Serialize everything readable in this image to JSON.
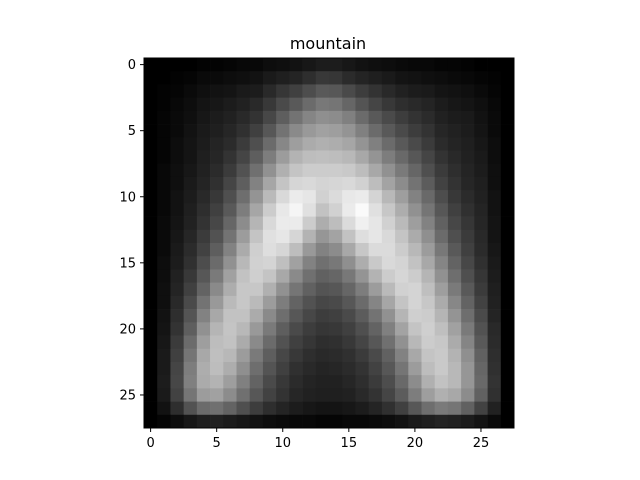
{
  "chart_data": {
    "type": "heatmap",
    "title": "mountain",
    "xlabel": "",
    "ylabel": "",
    "colormap": "gray",
    "value_range": [
      0,
      1
    ],
    "rows": 28,
    "cols": 28,
    "xlim": [
      -0.5,
      27.5
    ],
    "ylim": [
      27.5,
      -0.5
    ],
    "x_ticks": [
      0,
      5,
      10,
      15,
      20,
      25
    ],
    "y_ticks": [
      0,
      5,
      10,
      15,
      20,
      25
    ],
    "x_tick_labels": [
      "0",
      "5",
      "10",
      "15",
      "20",
      "25"
    ],
    "y_tick_labels": [
      "0",
      "5",
      "10",
      "15",
      "20",
      "25"
    ],
    "grid": false,
    "colors": {
      "low": "#000000",
      "high": "#ffffff",
      "frame": "#000000",
      "background": "#ffffff"
    },
    "values": [
      [
        0.0,
        0.0,
        0.0,
        0.0,
        0.01,
        0.01,
        0.02,
        0.03,
        0.03,
        0.05,
        0.06,
        0.07,
        0.09,
        0.11,
        0.11,
        0.09,
        0.07,
        0.06,
        0.05,
        0.04,
        0.03,
        0.03,
        0.02,
        0.02,
        0.01,
        0.0,
        0.0,
        0.0
      ],
      [
        0.0,
        0.0,
        0.01,
        0.02,
        0.04,
        0.04,
        0.05,
        0.06,
        0.07,
        0.1,
        0.12,
        0.14,
        0.18,
        0.22,
        0.21,
        0.17,
        0.14,
        0.12,
        0.1,
        0.08,
        0.07,
        0.06,
        0.05,
        0.04,
        0.03,
        0.02,
        0.01,
        0.0
      ],
      [
        0.0,
        0.01,
        0.02,
        0.04,
        0.06,
        0.07,
        0.08,
        0.1,
        0.11,
        0.16,
        0.21,
        0.25,
        0.3,
        0.35,
        0.34,
        0.29,
        0.24,
        0.2,
        0.16,
        0.13,
        0.11,
        0.1,
        0.08,
        0.07,
        0.06,
        0.04,
        0.02,
        0.0
      ],
      [
        0.0,
        0.01,
        0.03,
        0.05,
        0.08,
        0.09,
        0.11,
        0.13,
        0.16,
        0.22,
        0.29,
        0.35,
        0.42,
        0.47,
        0.46,
        0.4,
        0.33,
        0.27,
        0.22,
        0.18,
        0.16,
        0.14,
        0.11,
        0.09,
        0.08,
        0.06,
        0.03,
        0.0
      ],
      [
        0.0,
        0.02,
        0.04,
        0.06,
        0.09,
        0.11,
        0.13,
        0.16,
        0.2,
        0.28,
        0.37,
        0.45,
        0.52,
        0.56,
        0.55,
        0.5,
        0.42,
        0.35,
        0.29,
        0.24,
        0.2,
        0.17,
        0.13,
        0.11,
        0.1,
        0.07,
        0.04,
        0.0
      ],
      [
        0.0,
        0.02,
        0.04,
        0.07,
        0.1,
        0.12,
        0.15,
        0.19,
        0.25,
        0.34,
        0.45,
        0.54,
        0.6,
        0.63,
        0.62,
        0.58,
        0.5,
        0.42,
        0.35,
        0.29,
        0.24,
        0.2,
        0.15,
        0.13,
        0.11,
        0.08,
        0.04,
        0.0
      ],
      [
        0.0,
        0.02,
        0.05,
        0.08,
        0.11,
        0.14,
        0.17,
        0.23,
        0.31,
        0.42,
        0.53,
        0.62,
        0.67,
        0.69,
        0.68,
        0.65,
        0.58,
        0.5,
        0.42,
        0.35,
        0.29,
        0.23,
        0.17,
        0.14,
        0.12,
        0.09,
        0.05,
        0.0
      ],
      [
        0.0,
        0.02,
        0.05,
        0.08,
        0.12,
        0.15,
        0.2,
        0.27,
        0.37,
        0.49,
        0.61,
        0.7,
        0.74,
        0.75,
        0.74,
        0.72,
        0.66,
        0.58,
        0.49,
        0.41,
        0.34,
        0.27,
        0.2,
        0.16,
        0.13,
        0.1,
        0.05,
        0.0
      ],
      [
        0.0,
        0.03,
        0.06,
        0.09,
        0.13,
        0.17,
        0.23,
        0.32,
        0.44,
        0.57,
        0.69,
        0.77,
        0.8,
        0.8,
        0.8,
        0.79,
        0.74,
        0.66,
        0.57,
        0.48,
        0.4,
        0.31,
        0.23,
        0.18,
        0.14,
        0.11,
        0.06,
        0.0
      ],
      [
        0.0,
        0.03,
        0.06,
        0.1,
        0.14,
        0.19,
        0.27,
        0.37,
        0.51,
        0.65,
        0.77,
        0.84,
        0.85,
        0.83,
        0.84,
        0.85,
        0.82,
        0.74,
        0.64,
        0.55,
        0.45,
        0.36,
        0.26,
        0.2,
        0.15,
        0.12,
        0.06,
        0.0
      ],
      [
        0.0,
        0.03,
        0.07,
        0.11,
        0.16,
        0.22,
        0.31,
        0.43,
        0.58,
        0.73,
        0.85,
        0.92,
        0.9,
        0.82,
        0.86,
        0.91,
        0.92,
        0.83,
        0.72,
        0.62,
        0.51,
        0.41,
        0.3,
        0.22,
        0.17,
        0.13,
        0.07,
        0.0
      ],
      [
        0.0,
        0.03,
        0.07,
        0.12,
        0.18,
        0.25,
        0.35,
        0.49,
        0.65,
        0.8,
        0.91,
        0.96,
        0.88,
        0.76,
        0.82,
        0.92,
        0.98,
        0.88,
        0.78,
        0.68,
        0.57,
        0.46,
        0.34,
        0.25,
        0.19,
        0.14,
        0.07,
        0.0
      ],
      [
        0.0,
        0.04,
        0.08,
        0.13,
        0.2,
        0.28,
        0.4,
        0.55,
        0.71,
        0.85,
        0.92,
        0.92,
        0.8,
        0.68,
        0.74,
        0.86,
        0.94,
        0.9,
        0.82,
        0.73,
        0.62,
        0.51,
        0.38,
        0.28,
        0.21,
        0.15,
        0.08,
        0.0
      ],
      [
        0.0,
        0.04,
        0.09,
        0.15,
        0.23,
        0.32,
        0.45,
        0.61,
        0.77,
        0.88,
        0.9,
        0.84,
        0.7,
        0.59,
        0.64,
        0.76,
        0.87,
        0.9,
        0.85,
        0.77,
        0.67,
        0.56,
        0.42,
        0.31,
        0.23,
        0.16,
        0.08,
        0.0
      ],
      [
        0.0,
        0.04,
        0.1,
        0.17,
        0.26,
        0.37,
        0.51,
        0.67,
        0.81,
        0.87,
        0.84,
        0.74,
        0.6,
        0.51,
        0.55,
        0.66,
        0.78,
        0.86,
        0.86,
        0.8,
        0.72,
        0.61,
        0.47,
        0.35,
        0.25,
        0.17,
        0.09,
        0.0
      ],
      [
        0.0,
        0.05,
        0.11,
        0.19,
        0.3,
        0.42,
        0.57,
        0.72,
        0.82,
        0.83,
        0.75,
        0.63,
        0.51,
        0.44,
        0.47,
        0.56,
        0.68,
        0.79,
        0.85,
        0.83,
        0.76,
        0.66,
        0.52,
        0.39,
        0.28,
        0.19,
        0.1,
        0.0
      ],
      [
        0.0,
        0.05,
        0.13,
        0.22,
        0.34,
        0.48,
        0.63,
        0.76,
        0.81,
        0.77,
        0.66,
        0.54,
        0.44,
        0.38,
        0.4,
        0.47,
        0.58,
        0.7,
        0.8,
        0.84,
        0.8,
        0.71,
        0.57,
        0.43,
        0.31,
        0.21,
        0.11,
        0.0
      ],
      [
        0.0,
        0.06,
        0.14,
        0.25,
        0.39,
        0.54,
        0.68,
        0.78,
        0.78,
        0.69,
        0.57,
        0.46,
        0.38,
        0.33,
        0.34,
        0.4,
        0.49,
        0.61,
        0.73,
        0.82,
        0.83,
        0.75,
        0.62,
        0.48,
        0.35,
        0.23,
        0.12,
        0.0
      ],
      [
        0.0,
        0.06,
        0.16,
        0.29,
        0.45,
        0.6,
        0.73,
        0.78,
        0.73,
        0.61,
        0.49,
        0.39,
        0.32,
        0.28,
        0.29,
        0.34,
        0.42,
        0.52,
        0.65,
        0.77,
        0.83,
        0.78,
        0.67,
        0.53,
        0.39,
        0.26,
        0.13,
        0.0
      ],
      [
        0.0,
        0.07,
        0.18,
        0.33,
        0.51,
        0.66,
        0.76,
        0.76,
        0.67,
        0.54,
        0.43,
        0.34,
        0.28,
        0.24,
        0.25,
        0.29,
        0.36,
        0.45,
        0.57,
        0.71,
        0.81,
        0.8,
        0.71,
        0.58,
        0.43,
        0.29,
        0.14,
        0.0
      ],
      [
        0.0,
        0.08,
        0.2,
        0.37,
        0.57,
        0.71,
        0.77,
        0.72,
        0.6,
        0.48,
        0.37,
        0.29,
        0.24,
        0.21,
        0.22,
        0.25,
        0.31,
        0.39,
        0.5,
        0.64,
        0.77,
        0.81,
        0.75,
        0.63,
        0.48,
        0.32,
        0.16,
        0.0
      ],
      [
        0.0,
        0.09,
        0.23,
        0.42,
        0.62,
        0.74,
        0.76,
        0.67,
        0.54,
        0.42,
        0.32,
        0.25,
        0.21,
        0.18,
        0.19,
        0.22,
        0.27,
        0.34,
        0.44,
        0.57,
        0.72,
        0.8,
        0.78,
        0.67,
        0.52,
        0.35,
        0.17,
        0.0
      ],
      [
        0.0,
        0.1,
        0.25,
        0.46,
        0.66,
        0.75,
        0.72,
        0.61,
        0.48,
        0.37,
        0.28,
        0.22,
        0.18,
        0.16,
        0.17,
        0.19,
        0.23,
        0.29,
        0.38,
        0.51,
        0.66,
        0.77,
        0.79,
        0.7,
        0.56,
        0.38,
        0.18,
        0.0
      ],
      [
        0.0,
        0.1,
        0.27,
        0.49,
        0.68,
        0.74,
        0.68,
        0.56,
        0.43,
        0.33,
        0.25,
        0.19,
        0.16,
        0.14,
        0.15,
        0.17,
        0.2,
        0.26,
        0.34,
        0.46,
        0.61,
        0.74,
        0.79,
        0.72,
        0.59,
        0.4,
        0.19,
        0.0
      ],
      [
        0.0,
        0.11,
        0.28,
        0.5,
        0.67,
        0.7,
        0.62,
        0.5,
        0.39,
        0.29,
        0.22,
        0.17,
        0.14,
        0.13,
        0.13,
        0.15,
        0.18,
        0.23,
        0.3,
        0.41,
        0.55,
        0.69,
        0.76,
        0.72,
        0.59,
        0.41,
        0.2,
        0.0
      ],
      [
        0.0,
        0.1,
        0.26,
        0.46,
        0.61,
        0.63,
        0.55,
        0.44,
        0.34,
        0.26,
        0.2,
        0.15,
        0.13,
        0.12,
        0.12,
        0.13,
        0.16,
        0.2,
        0.27,
        0.36,
        0.49,
        0.62,
        0.69,
        0.66,
        0.55,
        0.38,
        0.19,
        0.0
      ],
      [
        0.0,
        0.07,
        0.18,
        0.32,
        0.42,
        0.44,
        0.39,
        0.31,
        0.24,
        0.18,
        0.14,
        0.11,
        0.09,
        0.08,
        0.08,
        0.09,
        0.11,
        0.14,
        0.19,
        0.25,
        0.34,
        0.43,
        0.48,
        0.46,
        0.38,
        0.26,
        0.13,
        0.0
      ],
      [
        0.0,
        0.02,
        0.05,
        0.09,
        0.12,
        0.13,
        0.11,
        0.09,
        0.07,
        0.05,
        0.04,
        0.03,
        0.03,
        0.02,
        0.02,
        0.03,
        0.03,
        0.04,
        0.05,
        0.07,
        0.1,
        0.12,
        0.14,
        0.13,
        0.11,
        0.08,
        0.04,
        0.0
      ]
    ]
  }
}
